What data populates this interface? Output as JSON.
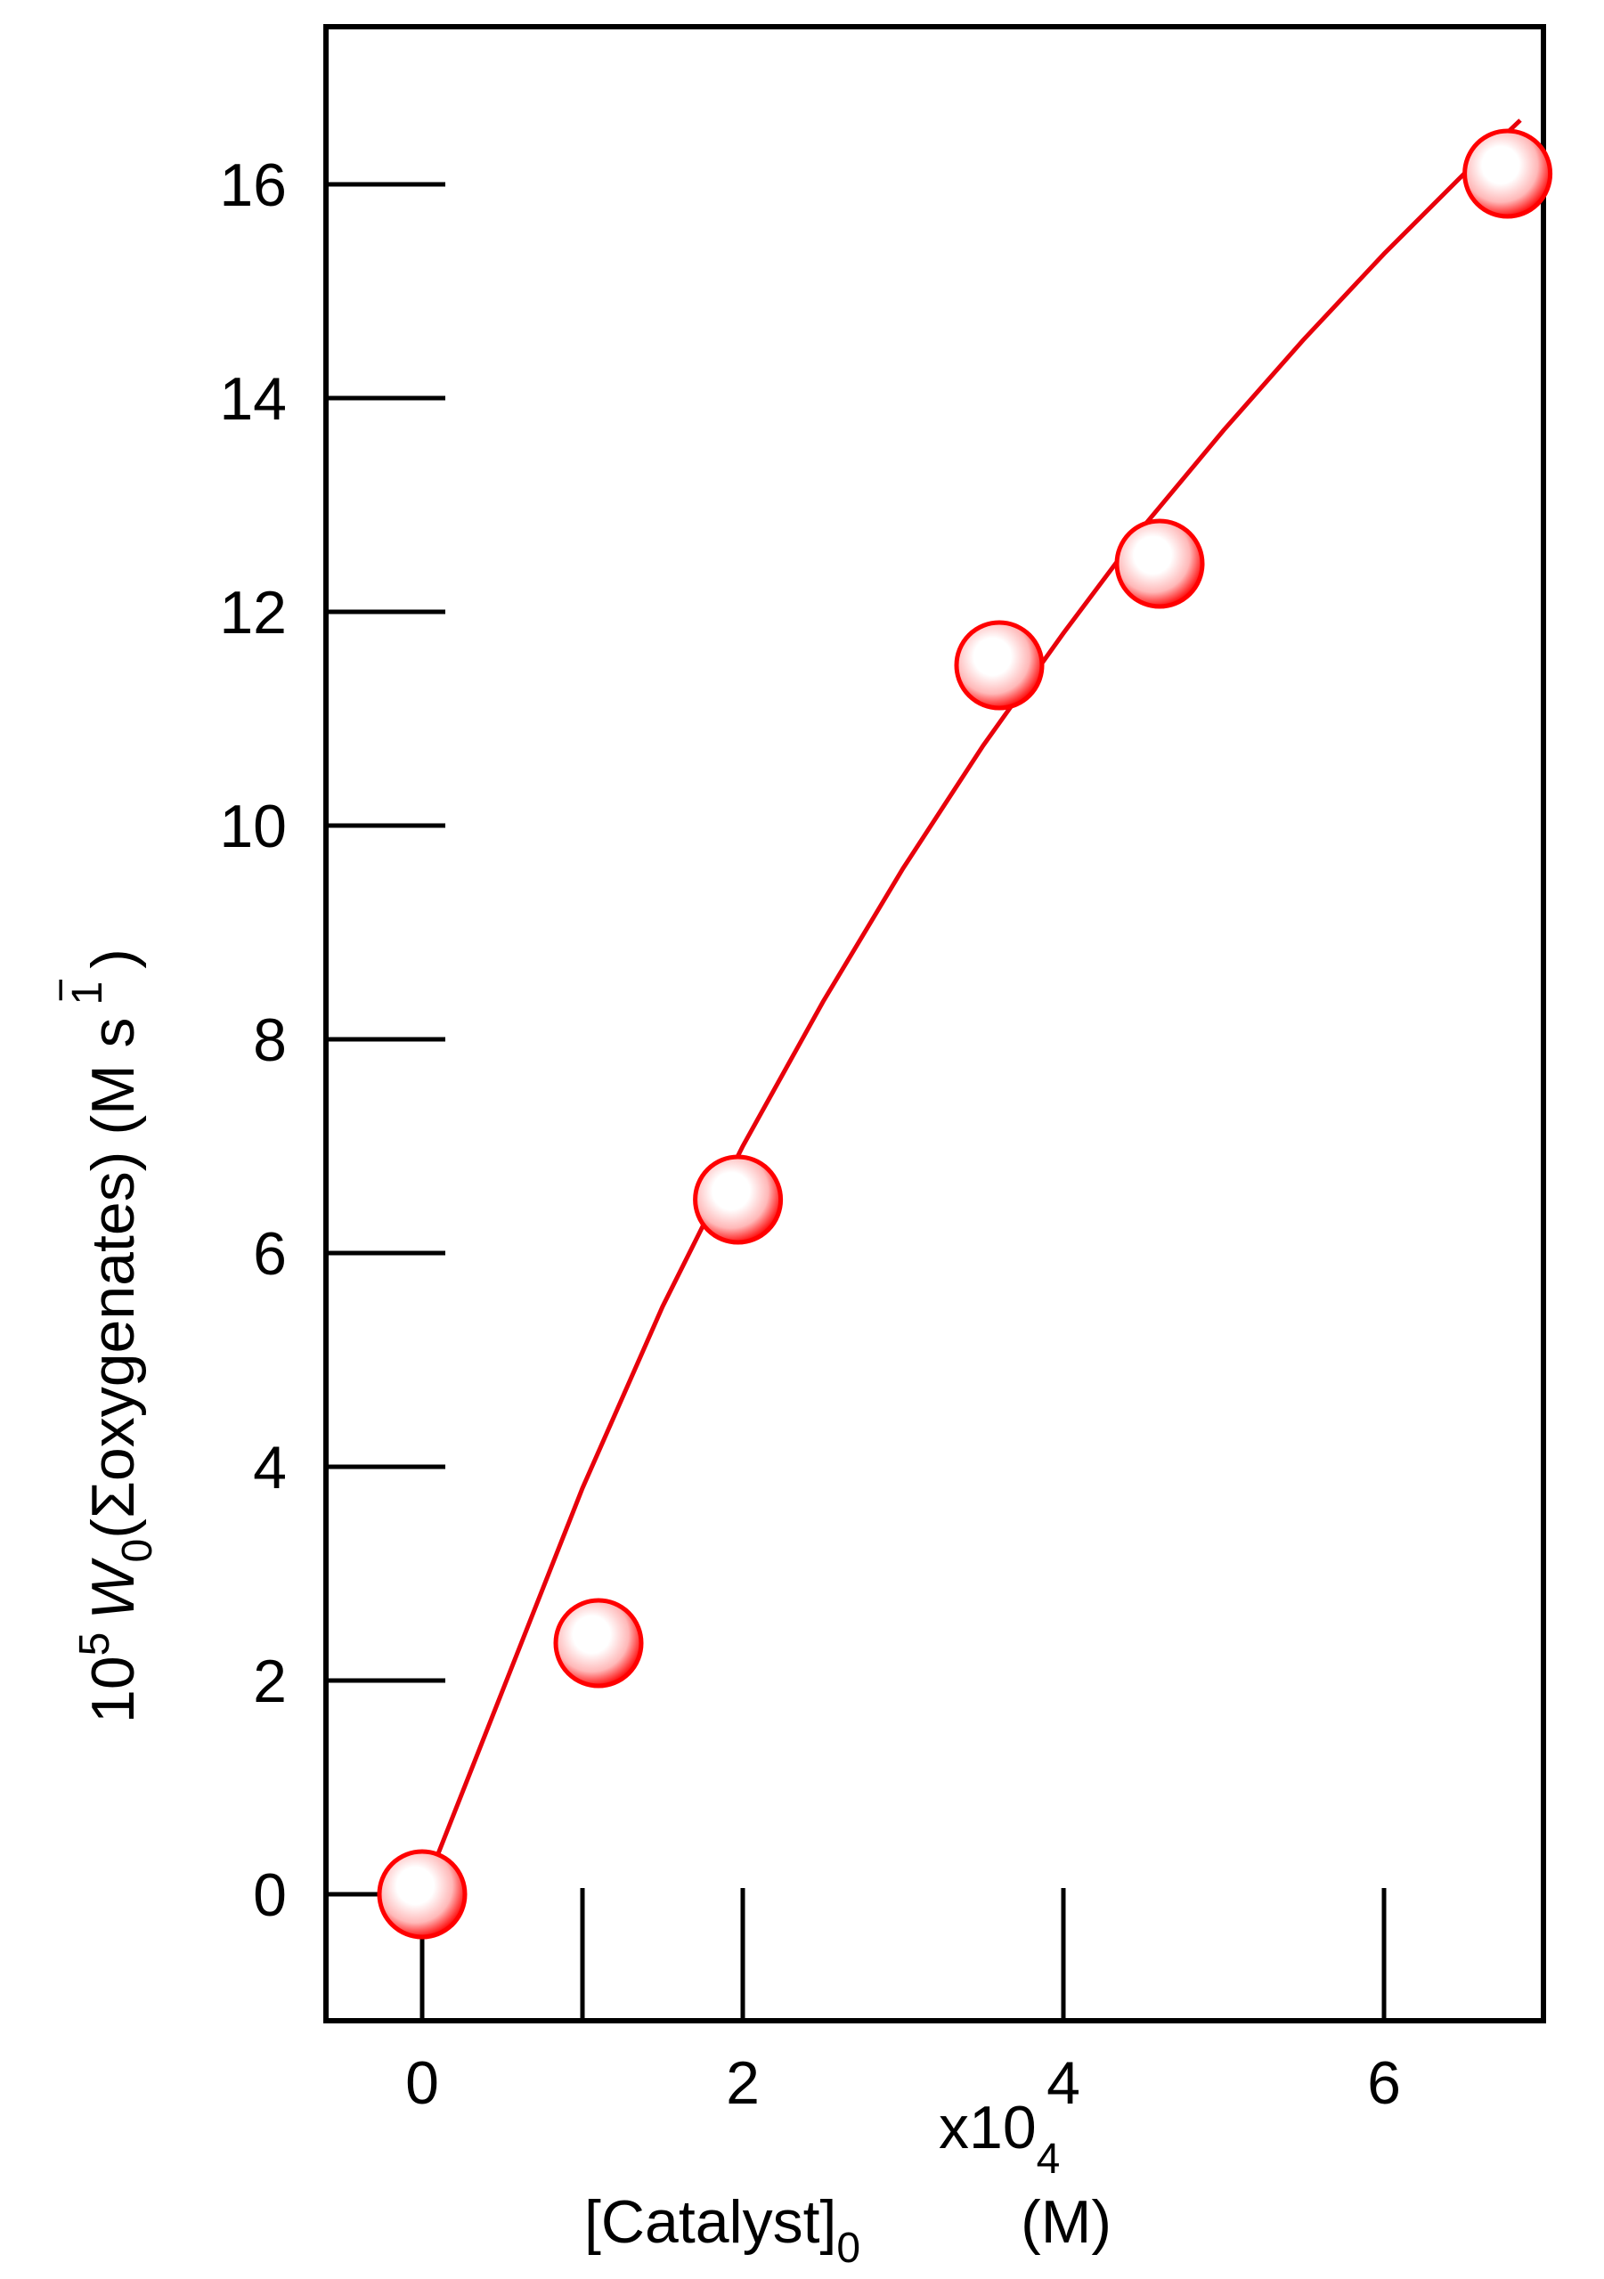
{
  "chart_data": {
    "type": "scatter",
    "title": "",
    "xlabel": {
      "main": "[Catalyst]",
      "sub": "0",
      "scale": "x10",
      "scale_sub": "4",
      "unit": "(M)"
    },
    "ylabel": {
      "factor": "10",
      "factor_sup": "5",
      "symbol": "W",
      "symbol_sub": "0",
      "quantity": "(Σoxygenates)",
      "unit_open": "(M s",
      "unit_sup": "1",
      "unit_minus": "−",
      "unit_close": ")"
    },
    "xlim": [
      -1.0,
      7.0
    ],
    "ylim": [
      -1.2,
      17.7
    ],
    "xticks": [
      0,
      2,
      4,
      6
    ],
    "yticks": [
      0,
      2,
      4,
      6,
      8,
      10,
      12,
      14,
      16
    ],
    "grid": false,
    "legend": "none",
    "series": [
      {
        "points": [
          {
            "x": 0.0,
            "y": 0.0
          },
          {
            "x": 1.1,
            "y": 2.35
          },
          {
            "x": 1.97,
            "y": 6.5
          },
          {
            "x": 3.6,
            "y": 11.5
          },
          {
            "x": 4.6,
            "y": 12.45
          },
          {
            "x": 6.77,
            "y": 16.1
          }
        ],
        "fit": [
          [
            0.0,
            0.0
          ],
          [
            0.5,
            1.9
          ],
          [
            1.0,
            3.8
          ],
          [
            1.5,
            5.5
          ],
          [
            2.0,
            7.0
          ],
          [
            2.5,
            8.35
          ],
          [
            3.0,
            9.6
          ],
          [
            3.5,
            10.75
          ],
          [
            4.0,
            11.8
          ],
          [
            4.5,
            12.8
          ],
          [
            5.0,
            13.7
          ],
          [
            5.5,
            14.55
          ],
          [
            6.0,
            15.35
          ],
          [
            6.5,
            16.1
          ],
          [
            6.85,
            16.6
          ]
        ]
      }
    ],
    "colors": {
      "fit_line": "#e8000b",
      "marker_edge": "#ff0000",
      "marker_core": "#ffffff",
      "axis": "#000000"
    }
  }
}
